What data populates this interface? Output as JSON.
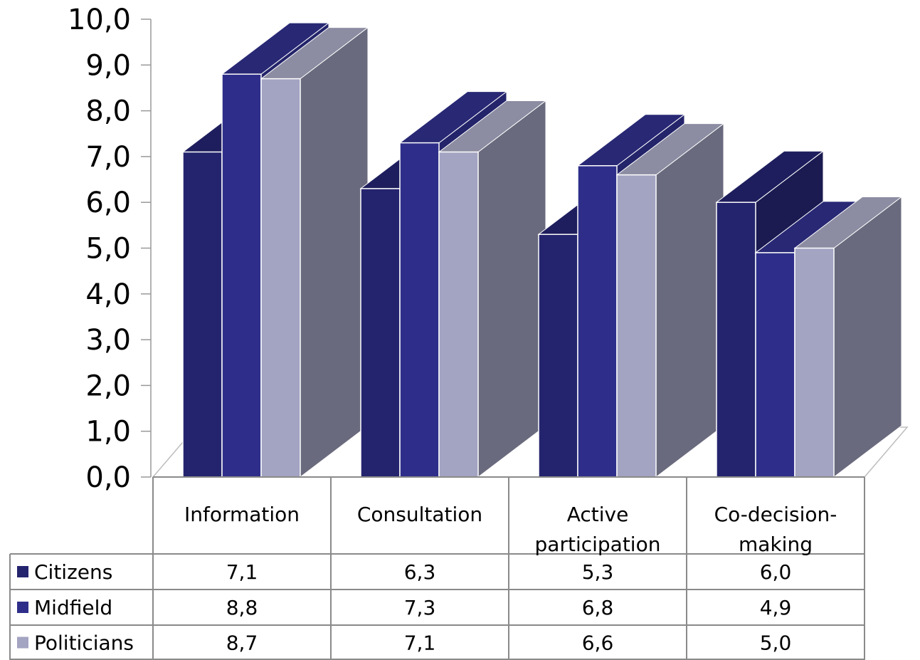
{
  "chart_data": {
    "type": "bar",
    "categories": [
      "Information",
      "Consultation",
      "Active participation",
      "Co-decision-making"
    ],
    "category_lines": [
      [
        "Information"
      ],
      [
        "Consultation"
      ],
      [
        "Active",
        "participation"
      ],
      [
        "Co-decision-",
        "making"
      ]
    ],
    "series": [
      {
        "name": "Citizens",
        "values": [
          7.1,
          6.3,
          5.3,
          6.0
        ],
        "labels": [
          "7,1",
          "6,3",
          "5,3",
          "6,0"
        ],
        "color": "#24246e"
      },
      {
        "name": "Midfield",
        "values": [
          8.8,
          7.3,
          6.8,
          4.9
        ],
        "labels": [
          "8,8",
          "7,3",
          "6,8",
          "4,9"
        ],
        "color": "#2e2e8a"
      },
      {
        "name": "Politicians",
        "values": [
          8.7,
          7.1,
          6.6,
          5.0
        ],
        "labels": [
          "8,7",
          "7,1",
          "6,6",
          "5,0"
        ],
        "color": "#a3a3c2"
      }
    ],
    "y_ticks": [
      "0,0",
      "1,0",
      "2,0",
      "3,0",
      "4,0",
      "5,0",
      "6,0",
      "7,0",
      "8,0",
      "9,0",
      "10,0"
    ],
    "ylim": [
      0,
      10
    ],
    "grid": false,
    "legend": "data-table-left",
    "title": "",
    "xlabel": "",
    "ylabel": ""
  }
}
